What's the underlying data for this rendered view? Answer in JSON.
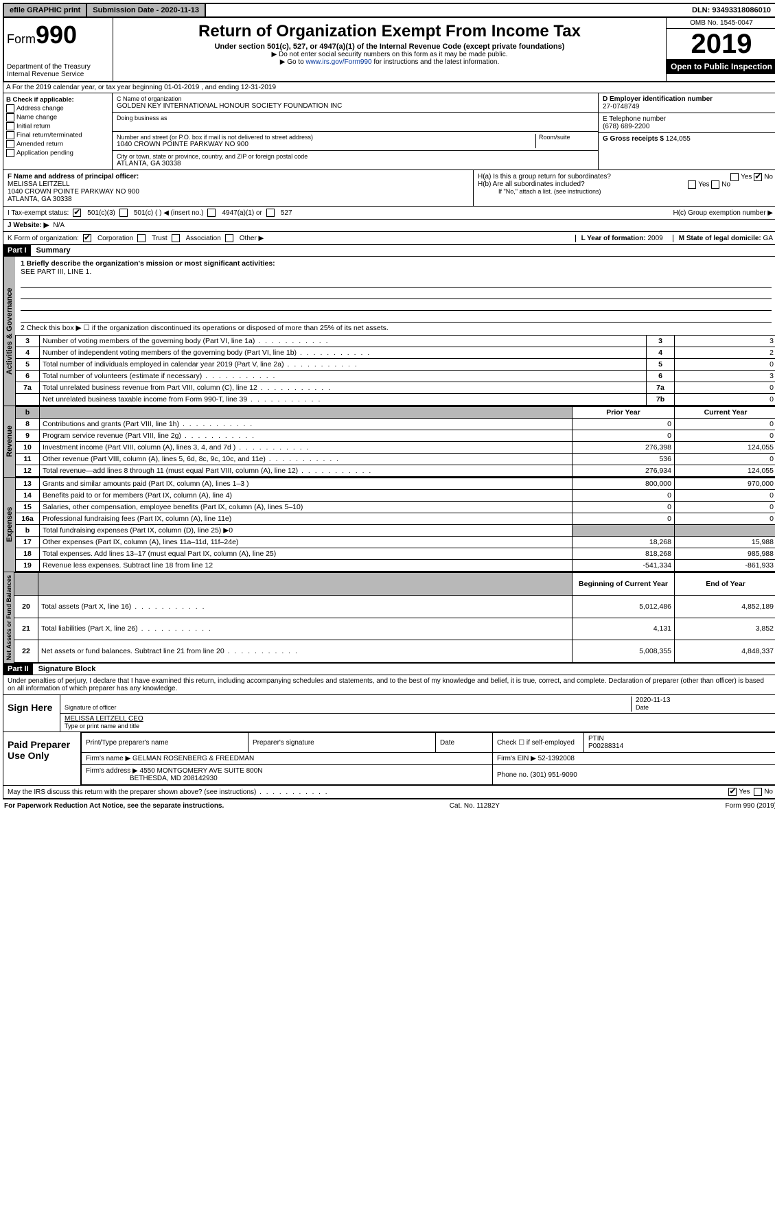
{
  "topbar": {
    "efile": "efile GRAPHIC print",
    "submission_label": "Submission Date - 2020-11-13",
    "dln": "DLN: 93493318086010"
  },
  "header": {
    "form_prefix": "Form",
    "form_number": "990",
    "dept": "Department of the Treasury",
    "irs": "Internal Revenue Service",
    "title": "Return of Organization Exempt From Income Tax",
    "subtitle": "Under section 501(c), 527, or 4947(a)(1) of the Internal Revenue Code (except private foundations)",
    "note1": "▶ Do not enter social security numbers on this form as it may be made public.",
    "note2_pre": "▶ Go to ",
    "note2_link": "www.irs.gov/Form990",
    "note2_post": " for instructions and the latest information.",
    "omb": "OMB No. 1545-0047",
    "year": "2019",
    "open": "Open to Public Inspection"
  },
  "section_a": "A For the 2019 calendar year, or tax year beginning 01-01-2019   , and ending 12-31-2019",
  "box_b": {
    "label": "B Check if applicable:",
    "items": [
      "Address change",
      "Name change",
      "Initial return",
      "Final return/terminated",
      "Amended return",
      "Application pending"
    ]
  },
  "box_c": {
    "name_label": "C Name of organization",
    "name": "GOLDEN KEY INTERNATIONAL HONOUR SOCIETY FOUNDATION INC",
    "dba_label": "Doing business as",
    "addr_label": "Number and street (or P.O. box if mail is not delivered to street address)",
    "room_label": "Room/suite",
    "addr": "1040 CROWN POINTE PARKWAY NO 900",
    "city_label": "City or town, state or province, country, and ZIP or foreign postal code",
    "city": "ATLANTA, GA  30338"
  },
  "box_d": {
    "label": "D Employer identification number",
    "value": "27-0748749"
  },
  "box_e": {
    "label": "E Telephone number",
    "value": "(678) 689-2200"
  },
  "box_g": {
    "label": "G Gross receipts $",
    "value": "124,055"
  },
  "box_f": {
    "label": "F  Name and address of principal officer:",
    "name": "MELISSA LEITZELL",
    "addr1": "1040 CROWN POINTE PARKWAY NO 900",
    "addr2": "ATLANTA, GA  30338"
  },
  "box_h": {
    "a": "H(a)  Is this a group return for subordinates?",
    "b": "H(b)  Are all subordinates included?",
    "b_note": "If \"No,\" attach a list. (see instructions)",
    "c": "H(c)  Group exemption number ▶",
    "yes": "Yes",
    "no": "No"
  },
  "row_i": {
    "label": "I    Tax-exempt status:",
    "opt1": "501(c)(3)",
    "opt2": "501(c) (   ) ◀ (insert no.)",
    "opt3": "4947(a)(1) or",
    "opt4": "527"
  },
  "row_j": {
    "label": "J    Website: ▶",
    "value": "N/A"
  },
  "row_k": {
    "label": "K Form of organization:",
    "opts": [
      "Corporation",
      "Trust",
      "Association",
      "Other ▶"
    ],
    "l_label": "L Year of formation:",
    "l_value": "2009",
    "m_label": "M State of legal domicile:",
    "m_value": "GA"
  },
  "part1": {
    "header": "Part I",
    "title": "Summary"
  },
  "summary": {
    "line1_label": "1  Briefly describe the organization's mission or most significant activities:",
    "line1_value": "SEE PART III, LINE 1.",
    "line2": "2    Check this box ▶ ☐  if the organization discontinued its operations or disposed of more than 25% of its net assets.",
    "rows_a": [
      {
        "n": "3",
        "d": "Number of voting members of the governing body (Part VI, line 1a)",
        "box": "3",
        "v": "3"
      },
      {
        "n": "4",
        "d": "Number of independent voting members of the governing body (Part VI, line 1b)",
        "box": "4",
        "v": "2"
      },
      {
        "n": "5",
        "d": "Total number of individuals employed in calendar year 2019 (Part V, line 2a)",
        "box": "5",
        "v": "0"
      },
      {
        "n": "6",
        "d": "Total number of volunteers (estimate if necessary)",
        "box": "6",
        "v": "3"
      },
      {
        "n": "7a",
        "d": "Total unrelated business revenue from Part VIII, column (C), line 12",
        "box": "7a",
        "v": "0"
      },
      {
        "n": "",
        "d": "Net unrelated business taxable income from Form 990-T, line 39",
        "box": "7b",
        "v": "0"
      }
    ],
    "col_headers": {
      "b": "b",
      "prior": "Prior Year",
      "current": "Current Year"
    },
    "rev": [
      {
        "n": "8",
        "d": "Contributions and grants (Part VIII, line 1h)",
        "p": "0",
        "c": "0"
      },
      {
        "n": "9",
        "d": "Program service revenue (Part VIII, line 2g)",
        "p": "0",
        "c": "0"
      },
      {
        "n": "10",
        "d": "Investment income (Part VIII, column (A), lines 3, 4, and 7d )",
        "p": "276,398",
        "c": "124,055"
      },
      {
        "n": "11",
        "d": "Other revenue (Part VIII, column (A), lines 5, 6d, 8c, 9c, 10c, and 11e)",
        "p": "536",
        "c": "0"
      },
      {
        "n": "12",
        "d": "Total revenue—add lines 8 through 11 (must equal Part VIII, column (A), line 12)",
        "p": "276,934",
        "c": "124,055"
      }
    ],
    "exp": [
      {
        "n": "13",
        "d": "Grants and similar amounts paid (Part IX, column (A), lines 1–3 )",
        "p": "800,000",
        "c": "970,000"
      },
      {
        "n": "14",
        "d": "Benefits paid to or for members (Part IX, column (A), line 4)",
        "p": "0",
        "c": "0"
      },
      {
        "n": "15",
        "d": "Salaries, other compensation, employee benefits (Part IX, column (A), lines 5–10)",
        "p": "0",
        "c": "0"
      },
      {
        "n": "16a",
        "d": "Professional fundraising fees (Part IX, column (A), line 11e)",
        "p": "0",
        "c": "0"
      },
      {
        "n": "b",
        "d": "Total fundraising expenses (Part IX, column (D), line 25) ▶0",
        "p": "",
        "c": "",
        "grey": true
      },
      {
        "n": "17",
        "d": "Other expenses (Part IX, column (A), lines 11a–11d, 11f–24e)",
        "p": "18,268",
        "c": "15,988"
      },
      {
        "n": "18",
        "d": "Total expenses. Add lines 13–17 (must equal Part IX, column (A), line 25)",
        "p": "818,268",
        "c": "985,988"
      },
      {
        "n": "19",
        "d": "Revenue less expenses. Subtract line 18 from line 12",
        "p": "-541,334",
        "c": "-861,933"
      }
    ],
    "na_headers": {
      "begin": "Beginning of Current Year",
      "end": "End of Year"
    },
    "na": [
      {
        "n": "20",
        "d": "Total assets (Part X, line 16)",
        "p": "5,012,486",
        "c": "4,852,189"
      },
      {
        "n": "21",
        "d": "Total liabilities (Part X, line 26)",
        "p": "4,131",
        "c": "3,852"
      },
      {
        "n": "22",
        "d": "Net assets or fund balances. Subtract line 21 from line 20",
        "p": "5,008,355",
        "c": "4,848,337"
      }
    ],
    "tabs": {
      "ag": "Activities & Governance",
      "rev": "Revenue",
      "exp": "Expenses",
      "na": "Net Assets or Fund Balances"
    }
  },
  "part2": {
    "header": "Part II",
    "title": "Signature Block",
    "perjury": "Under penalties of perjury, I declare that I have examined this return, including accompanying schedules and statements, and to the best of my knowledge and belief, it is true, correct, and complete. Declaration of preparer (other than officer) is based on all information of which preparer has any knowledge."
  },
  "sign": {
    "label": "Sign Here",
    "sig_officer": "Signature of officer",
    "date_label": "Date",
    "date": "2020-11-13",
    "name": "MELISSA LEITZELL  CEO",
    "name_label": "Type or print name and title"
  },
  "prep": {
    "label": "Paid Preparer Use Only",
    "h1": "Print/Type preparer's name",
    "h2": "Preparer's signature",
    "h3": "Date",
    "h4a": "Check ☐ if self-employed",
    "h4b": "PTIN",
    "ptin": "P00288314",
    "firm_label": "Firm's name    ▶",
    "firm": "GELMAN ROSENBERG & FREEDMAN",
    "ein_label": "Firm's EIN ▶",
    "ein": "52-1392008",
    "addr_label": "Firm's address ▶",
    "addr1": "4550 MONTGOMERY AVE SUITE 800N",
    "addr2": "BETHESDA, MD  208142930",
    "phone_label": "Phone no.",
    "phone": "(301) 951-9090"
  },
  "discuss": {
    "q": "May the IRS discuss this return with the preparer shown above? (see instructions)",
    "yes": "Yes",
    "no": "No"
  },
  "footer": {
    "left": "For Paperwork Reduction Act Notice, see the separate instructions.",
    "mid": "Cat. No. 11282Y",
    "right": "Form 990 (2019)"
  }
}
